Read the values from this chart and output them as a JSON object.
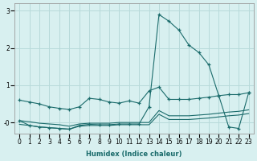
{
  "xlabel": "Humidex (Indice chaleur)",
  "ylabel": "",
  "xlim": [
    -0.5,
    23.5
  ],
  "ylim": [
    -0.3,
    3.2
  ],
  "yticks": [
    0,
    1,
    2,
    3
  ],
  "xticks": [
    0,
    1,
    2,
    3,
    4,
    5,
    6,
    7,
    8,
    9,
    10,
    11,
    12,
    13,
    14,
    15,
    16,
    17,
    18,
    19,
    20,
    21,
    22,
    23
  ],
  "bg_color": "#d8f0f0",
  "grid_color": "#b8dada",
  "line_color": "#1a6b6b",
  "lines": [
    {
      "x": [
        0,
        1,
        2,
        3,
        4,
        5,
        6,
        7,
        8,
        9,
        10,
        11,
        12,
        13,
        14,
        15,
        16,
        17,
        18,
        19,
        20,
        21,
        22,
        23
      ],
      "y": [
        0.6,
        0.55,
        0.5,
        0.42,
        0.38,
        0.35,
        0.42,
        0.65,
        0.62,
        0.55,
        0.52,
        0.58,
        0.52,
        0.85,
        0.95,
        0.62,
        0.62,
        0.62,
        0.65,
        0.68,
        0.72,
        0.75,
        0.75,
        0.8
      ],
      "style": "-",
      "marker": "+"
    },
    {
      "x": [
        0,
        1,
        2,
        3,
        4,
        5,
        6,
        7,
        8,
        9,
        10,
        11,
        12,
        13,
        14,
        15,
        16,
        17,
        18,
        19,
        20,
        21,
        22,
        23
      ],
      "y": [
        0.05,
        0.02,
        -0.02,
        -0.04,
        -0.06,
        -0.1,
        -0.04,
        -0.02,
        -0.02,
        -0.02,
        0.0,
        0.0,
        0.0,
        0.0,
        0.32,
        0.18,
        0.18,
        0.18,
        0.2,
        0.22,
        0.25,
        0.28,
        0.3,
        0.34
      ],
      "style": "-",
      "marker": null
    },
    {
      "x": [
        0,
        1,
        2,
        3,
        4,
        5,
        6,
        7,
        8,
        9,
        10,
        11,
        12,
        13,
        14,
        15,
        16,
        17,
        18,
        19,
        20,
        21,
        22,
        23
      ],
      "y": [
        -0.05,
        -0.08,
        -0.12,
        -0.14,
        -0.16,
        -0.18,
        -0.1,
        -0.08,
        -0.08,
        -0.08,
        -0.06,
        -0.06,
        -0.06,
        -0.06,
        0.22,
        0.08,
        0.08,
        0.08,
        0.1,
        0.12,
        0.15,
        0.18,
        0.2,
        0.24
      ],
      "style": "-",
      "marker": null
    },
    {
      "x": [
        0,
        1,
        2,
        3,
        4,
        5,
        6,
        7,
        8,
        9,
        10,
        11,
        12,
        13,
        14,
        15,
        16,
        17,
        18,
        19,
        20,
        21,
        22,
        23
      ],
      "y": [
        0.05,
        -0.08,
        -0.12,
        -0.14,
        -0.16,
        -0.18,
        -0.08,
        -0.05,
        -0.06,
        -0.06,
        -0.04,
        -0.04,
        -0.04,
        0.42,
        2.9,
        2.72,
        2.48,
        2.08,
        1.88,
        1.55,
        0.72,
        -0.12,
        -0.16,
        0.8
      ],
      "style": "-",
      "marker": "+"
    }
  ]
}
